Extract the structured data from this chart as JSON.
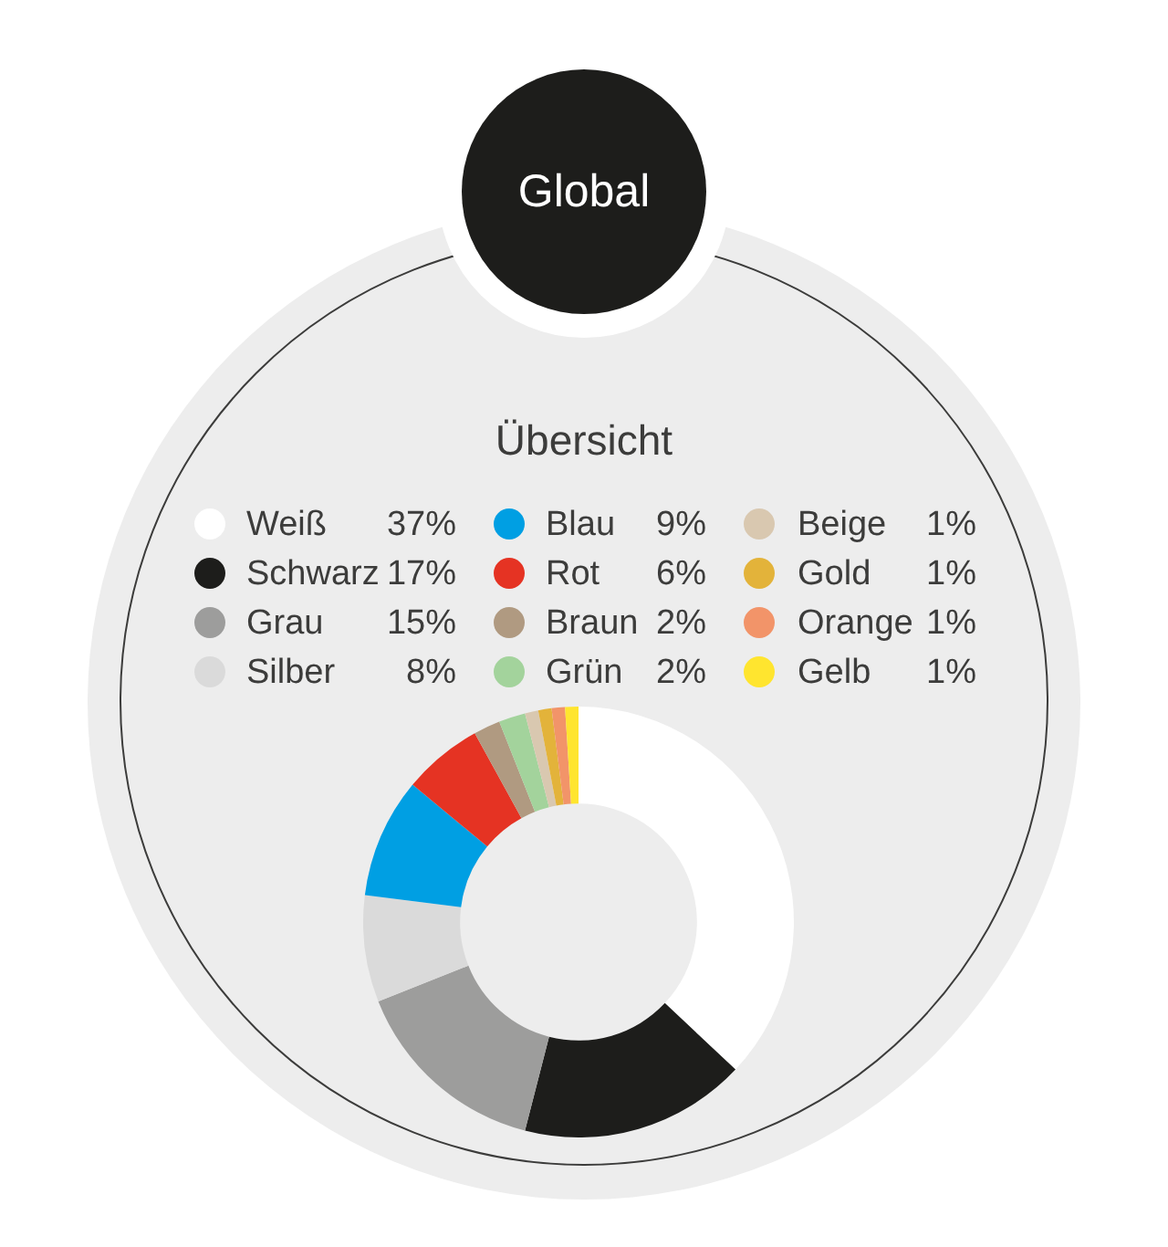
{
  "chart_data": {
    "type": "donut",
    "title": "Global",
    "subtitle": "Übersicht",
    "categories": [
      "Weiß",
      "Schwarz",
      "Grau",
      "Silber",
      "Blau",
      "Rot",
      "Braun",
      "Grün",
      "Beige",
      "Gold",
      "Orange",
      "Gelb"
    ],
    "values": [
      37,
      17,
      15,
      8,
      9,
      6,
      2,
      2,
      1,
      1,
      1,
      1
    ],
    "colors": [
      "#ffffff",
      "#1d1d1b",
      "#9d9d9c",
      "#dadada",
      "#009fe3",
      "#e53323",
      "#b09a81",
      "#a3d39c",
      "#d9c8b0",
      "#e3b33a",
      "#f29469",
      "#ffe52f"
    ],
    "value_labels": [
      "37%",
      "17%",
      "15%",
      "8%",
      "9%",
      "6%",
      "2%",
      "2%",
      "1%",
      "1%",
      "1%",
      "1%"
    ],
    "legend": "top"
  }
}
